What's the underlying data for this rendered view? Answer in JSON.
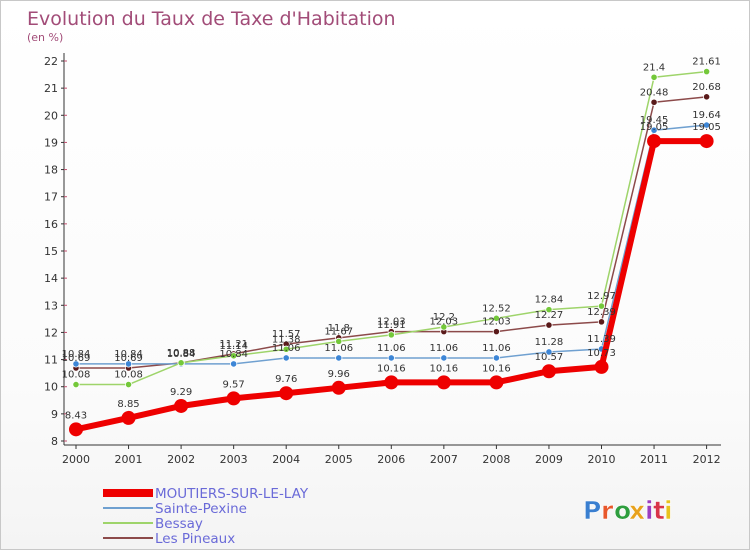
{
  "title": "Evolution du Taux de Taxe d'Habitation",
  "unit_label": "(en %)",
  "logo": {
    "text": "Proxiti",
    "colors": [
      "#3a7fd0",
      "#e8572a",
      "#2e9e3e",
      "#e8a21d",
      "#9b3dc1",
      "#d8344a",
      "#e8c21d"
    ]
  },
  "chart_data": {
    "type": "line",
    "x": [
      "2000",
      "2001",
      "2002",
      "2003",
      "2004",
      "2005",
      "2006",
      "2007",
      "2008",
      "2009",
      "2010",
      "2011",
      "2012"
    ],
    "ylim": [
      8,
      22
    ],
    "yticks": [
      "8",
      "9",
      "10",
      "11",
      "12",
      "13",
      "14",
      "15",
      "16",
      "17",
      "18",
      "19",
      "20",
      "21",
      "22"
    ],
    "grid": false,
    "legend_position": "bottom-left",
    "series": [
      {
        "name": "Les Pineaux",
        "color": "#7a2a2a",
        "line_color": "#8c4a4a",
        "marker_color": "#5a1a1a",
        "values": [
          10.69,
          10.69,
          10.88,
          11.21,
          11.57,
          11.8,
          12.03,
          12.03,
          12.03,
          12.27,
          12.39,
          20.48,
          20.68
        ],
        "labels": [
          "10.69",
          "10.69",
          "10.88",
          "11.21",
          "11.57",
          "11.8",
          "12.03",
          "12.03",
          "12.03",
          "12.27",
          "12.39",
          "20.48",
          "20.68"
        ]
      },
      {
        "name": "Sainte-Pexine",
        "color": "#4a8ad0",
        "line_color": "#6fa0d0",
        "marker_color": "#3d86d6",
        "values": [
          10.84,
          10.84,
          10.84,
          10.84,
          11.06,
          11.06,
          11.06,
          11.06,
          11.06,
          11.28,
          11.39,
          19.45,
          19.64
        ],
        "labels": [
          "10.84",
          "10.84",
          "10.84",
          "10.84",
          "11.06",
          "11.06",
          "11.06",
          "11.06",
          "11.06",
          "11.28",
          "11.39",
          "19.45",
          "19.64"
        ]
      },
      {
        "name": "Bessay",
        "color": "#7acb3a",
        "line_color": "#9ed46a",
        "marker_color": "#74c83a",
        "values": [
          10.08,
          10.08,
          10.88,
          11.14,
          11.38,
          11.67,
          11.91,
          12.2,
          12.52,
          12.84,
          12.97,
          21.4,
          21.61
        ],
        "labels": [
          "10.08",
          "10.08",
          "10.88",
          "11.14",
          "11.38",
          "11.67",
          "11.91",
          "12.2",
          "12.52",
          "12.84",
          "12.97",
          "21.4",
          "21.61"
        ]
      },
      {
        "name": "MOUTIERS-SUR-LE-LAY",
        "color": "#ee0000",
        "line_color": "#ee0000",
        "marker_color": "#ee0000",
        "values": [
          8.43,
          8.85,
          9.29,
          9.57,
          9.76,
          9.96,
          10.16,
          10.16,
          10.16,
          10.57,
          10.73,
          19.05,
          19.05
        ],
        "labels": [
          "8.43",
          "8.85",
          "9.29",
          "9.57",
          "9.76",
          "9.96",
          "10.16",
          "10.16",
          "10.16",
          "10.57",
          "10.73",
          "19.05",
          "19.05"
        ]
      }
    ],
    "legend": [
      "MOUTIERS-SUR-LE-LAY",
      "Sainte-Pexine",
      "Bessay",
      "Les Pineaux"
    ]
  }
}
